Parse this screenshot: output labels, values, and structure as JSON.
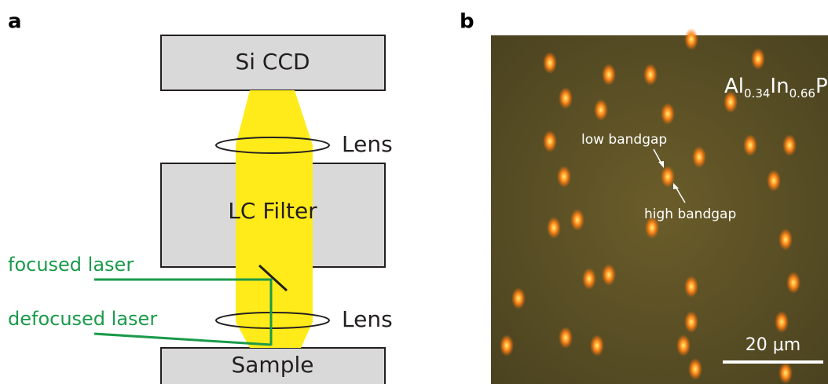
{
  "panel_a": {
    "label": "a",
    "boxes": [
      "Si CCD",
      "LC Filter",
      "Sample"
    ],
    "lens_labels": [
      "Lens",
      "Lens"
    ],
    "lasers": [
      "focused laser",
      "defocused laser"
    ]
  },
  "panel_b": {
    "label": "b",
    "composition": [
      "Al",
      "0.34",
      "In",
      "0.66",
      "P"
    ],
    "annotations": [
      "low bandgap",
      "high bandgap"
    ],
    "scale_bar": "20 μm"
  }
}
